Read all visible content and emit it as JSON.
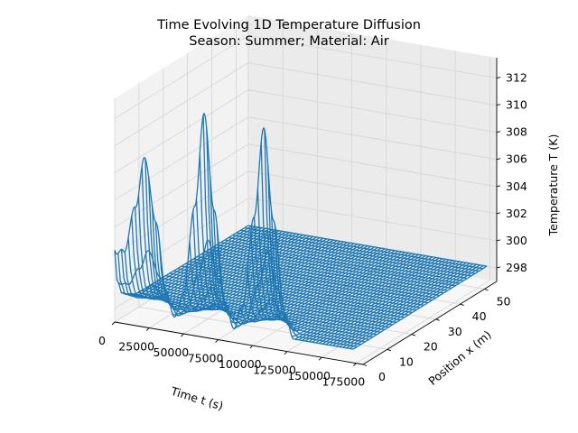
{
  "chart_data": {
    "type": "surface-wireframe-3d",
    "title_line1": "Time Evolving 1D Temperature Diffusion",
    "title_line2": "Season: Summer; Material: Air",
    "xlabel": "Time $t$ (s)",
    "xlabel_display": "Time t (s)",
    "ylabel": "Position $x$ (m)",
    "ylabel_display": "Position x (m)",
    "zlabel": "Temperature $T$ (K)",
    "zlabel_display": "Temperature T (K)",
    "x_ticks": [
      "0",
      "25000",
      "50000",
      "75000",
      "100000",
      "125000",
      "150000",
      "175000"
    ],
    "x_tick_values": [
      0,
      25000,
      50000,
      75000,
      100000,
      125000,
      150000,
      175000
    ],
    "y_ticks": [
      "0",
      "10",
      "20",
      "30",
      "40",
      "50"
    ],
    "y_tick_values": [
      0,
      10,
      20,
      30,
      40,
      50
    ],
    "z_ticks": [
      "298",
      "300",
      "302",
      "304",
      "306",
      "308",
      "310",
      "312"
    ],
    "z_tick_values": [
      298,
      300,
      302,
      304,
      306,
      308,
      310,
      312
    ],
    "xlim": [
      0,
      180000
    ],
    "ylim": [
      0,
      55
    ],
    "zlim": [
      297,
      313.5
    ],
    "baseline_temperature": 298,
    "boundary_at_x0": [
      {
        "t": 0,
        "T": 298
      },
      {
        "t": 6300,
        "T": 299.8
      },
      {
        "t": 15000,
        "T": 304.5
      },
      {
        "t": 21600,
        "T": 308.8
      },
      {
        "t": 30000,
        "T": 304.5
      },
      {
        "t": 36900,
        "T": 299.8
      },
      {
        "t": 43200,
        "T": 298
      },
      {
        "t": 49500,
        "T": 299.8
      },
      {
        "t": 58000,
        "T": 306.5
      },
      {
        "t": 64800,
        "T": 313.5
      },
      {
        "t": 72000,
        "T": 306.5
      },
      {
        "t": 80100,
        "T": 299.8
      },
      {
        "t": 86400,
        "T": 298
      },
      {
        "t": 92700,
        "T": 299.8
      },
      {
        "t": 101000,
        "T": 306.5
      },
      {
        "t": 108000,
        "T": 313.2
      },
      {
        "t": 115000,
        "T": 306.5
      },
      {
        "t": 123300,
        "T": 299.8
      },
      {
        "t": 129600,
        "T": 298
      },
      {
        "t": 136000,
        "T": 298
      },
      {
        "t": 172800,
        "T": 298
      }
    ],
    "initial_profile_t0": [
      {
        "x": 0,
        "T": 302.3
      },
      {
        "x": 1,
        "T": 300
      },
      {
        "x": 3,
        "T": 298.8
      },
      {
        "x": 6,
        "T": 298.4
      },
      {
        "x": 9,
        "T": 298.1
      },
      {
        "x": 55,
        "T": 298
      }
    ],
    "grid": true,
    "line_color": "#1f77b4"
  }
}
